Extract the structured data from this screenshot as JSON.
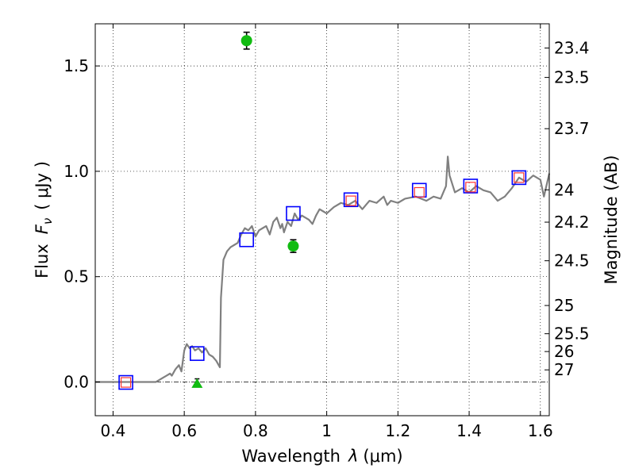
{
  "chart_data": {
    "type": "scatter",
    "xlabel_text": "Wavelength",
    "xlabel_symbol": "λ",
    "xlabel_unit": "(μm)",
    "ylabel_text": "Flux",
    "ylabel_symbol": "F",
    "ylabel_subscript": "ν",
    "ylabel_unit": "( μJy )",
    "y2label": "Magnitude (AB)",
    "xlim": [
      0.35,
      1.625
    ],
    "ylim": [
      -0.16,
      1.7
    ],
    "x_ticks": [
      0.4,
      0.6,
      0.8,
      1.0,
      1.2,
      1.4,
      1.6
    ],
    "x_tick_labels": [
      "0.4",
      "0.6",
      "0.8",
      "1",
      "1.2",
      "1.4",
      "1.6"
    ],
    "y_ticks": [
      0.0,
      0.5,
      1.0,
      1.5
    ],
    "y_tick_labels": [
      "0.0",
      "0.5",
      "1.0",
      "1.5"
    ],
    "mag_ticks": [
      23.4,
      23.5,
      23.7,
      24,
      24.2,
      24.5,
      25,
      25.5,
      26,
      27
    ],
    "mag_tick_labels": [
      "23.4",
      "23.5",
      "23.7",
      "24",
      "24.2",
      "24.5",
      "25",
      "25.5",
      "26",
      "27"
    ],
    "grid": true,
    "reference_line_y": 0.0,
    "colors": {
      "sed": "#808080",
      "model_photometry": "#0000ff",
      "model_red": "#ff3333",
      "detection": "#11bb11",
      "error_bar": "#000000"
    },
    "series": [
      {
        "kind": "line",
        "values": [
          [
            0.35,
            0.0
          ],
          [
            0.42,
            0.0
          ],
          [
            0.5,
            0.0
          ],
          [
            0.52,
            0.0
          ],
          [
            0.54,
            0.02
          ],
          [
            0.55,
            0.03
          ],
          [
            0.56,
            0.04
          ],
          [
            0.565,
            0.03
          ],
          [
            0.575,
            0.06
          ],
          [
            0.585,
            0.08
          ],
          [
            0.592,
            0.05
          ],
          [
            0.6,
            0.15
          ],
          [
            0.607,
            0.18
          ],
          [
            0.615,
            0.16
          ],
          [
            0.622,
            0.17
          ],
          [
            0.63,
            0.15
          ],
          [
            0.64,
            0.16
          ],
          [
            0.65,
            0.14
          ],
          [
            0.66,
            0.16
          ],
          [
            0.67,
            0.13
          ],
          [
            0.68,
            0.12
          ],
          [
            0.69,
            0.1
          ],
          [
            0.7,
            0.07
          ],
          [
            0.703,
            0.4
          ],
          [
            0.71,
            0.58
          ],
          [
            0.72,
            0.62
          ],
          [
            0.73,
            0.64
          ],
          [
            0.74,
            0.65
          ],
          [
            0.75,
            0.66
          ],
          [
            0.76,
            0.7
          ],
          [
            0.77,
            0.73
          ],
          [
            0.78,
            0.72
          ],
          [
            0.79,
            0.74
          ],
          [
            0.8,
            0.69
          ],
          [
            0.81,
            0.72
          ],
          [
            0.82,
            0.73
          ],
          [
            0.83,
            0.74
          ],
          [
            0.84,
            0.7
          ],
          [
            0.85,
            0.76
          ],
          [
            0.86,
            0.78
          ],
          [
            0.87,
            0.73
          ],
          [
            0.875,
            0.75
          ],
          [
            0.88,
            0.71
          ],
          [
            0.89,
            0.76
          ],
          [
            0.9,
            0.74
          ],
          [
            0.91,
            0.8
          ],
          [
            0.92,
            0.77
          ],
          [
            0.93,
            0.79
          ],
          [
            0.94,
            0.78
          ],
          [
            0.95,
            0.77
          ],
          [
            0.96,
            0.75
          ],
          [
            0.97,
            0.79
          ],
          [
            0.98,
            0.82
          ],
          [
            0.99,
            0.81
          ],
          [
            1.0,
            0.8
          ],
          [
            1.02,
            0.83
          ],
          [
            1.04,
            0.85
          ],
          [
            1.06,
            0.84
          ],
          [
            1.08,
            0.86
          ],
          [
            1.1,
            0.82
          ],
          [
            1.12,
            0.86
          ],
          [
            1.14,
            0.85
          ],
          [
            1.16,
            0.88
          ],
          [
            1.17,
            0.84
          ],
          [
            1.18,
            0.86
          ],
          [
            1.2,
            0.85
          ],
          [
            1.22,
            0.87
          ],
          [
            1.25,
            0.88
          ],
          [
            1.28,
            0.86
          ],
          [
            1.3,
            0.88
          ],
          [
            1.32,
            0.87
          ],
          [
            1.335,
            0.93
          ],
          [
            1.34,
            1.07
          ],
          [
            1.345,
            0.98
          ],
          [
            1.36,
            0.9
          ],
          [
            1.38,
            0.92
          ],
          [
            1.4,
            0.9
          ],
          [
            1.42,
            0.93
          ],
          [
            1.44,
            0.91
          ],
          [
            1.46,
            0.9
          ],
          [
            1.48,
            0.86
          ],
          [
            1.5,
            0.88
          ],
          [
            1.52,
            0.92
          ],
          [
            1.54,
            0.97
          ],
          [
            1.56,
            0.95
          ],
          [
            1.58,
            0.98
          ],
          [
            1.6,
            0.96
          ],
          [
            1.61,
            0.88
          ],
          [
            1.625,
            0.99
          ]
        ]
      },
      {
        "kind": "model_squares",
        "values": [
          [
            0.436,
            -0.002
          ],
          [
            0.636,
            0.135
          ],
          [
            0.775,
            0.675
          ],
          [
            0.906,
            0.8
          ],
          [
            1.068,
            0.865
          ],
          [
            1.26,
            0.91
          ],
          [
            1.404,
            0.93
          ],
          [
            1.54,
            0.97
          ]
        ]
      },
      {
        "kind": "model_squares_red",
        "values": [
          [
            0.436,
            -0.002
          ],
          [
            1.068,
            0.86
          ],
          [
            1.26,
            0.9
          ],
          [
            1.404,
            0.925
          ],
          [
            1.54,
            0.97
          ]
        ]
      },
      {
        "kind": "detections",
        "values": [
          [
            0.775,
            1.62,
            0.04
          ],
          [
            0.906,
            0.645,
            0.03
          ]
        ]
      },
      {
        "kind": "upper_limit",
        "values": [
          [
            0.636,
            -0.005,
            0.02
          ]
        ]
      }
    ]
  }
}
